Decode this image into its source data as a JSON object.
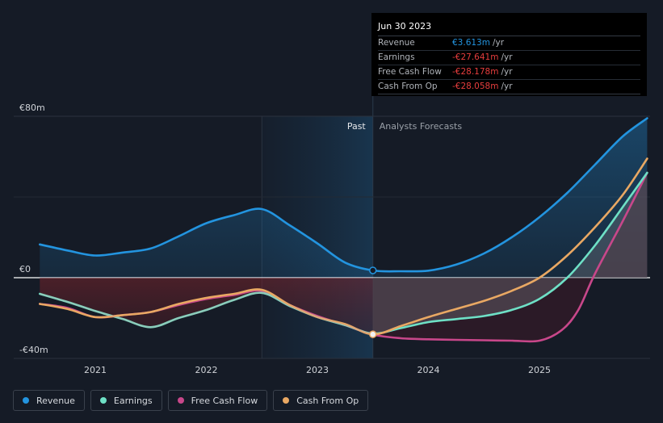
{
  "tooltip": {
    "date": "Jun 30 2023",
    "rows": [
      {
        "label": "Revenue",
        "value": "€3.613m",
        "unit": "/yr",
        "color": "#2394df"
      },
      {
        "label": "Earnings",
        "value": "-€27.641m",
        "unit": "/yr",
        "color": "#e63d3d"
      },
      {
        "label": "Free Cash Flow",
        "value": "-€28.178m",
        "unit": "/yr",
        "color": "#e63d3d"
      },
      {
        "label": "Cash From Op",
        "value": "-€28.058m",
        "unit": "/yr",
        "color": "#e63d3d"
      }
    ]
  },
  "legend": [
    {
      "label": "Revenue",
      "color": "#2394df"
    },
    {
      "label": "Earnings",
      "color": "#6ee0c6"
    },
    {
      "label": "Free Cash Flow",
      "color": "#c8478a"
    },
    {
      "label": "Cash From Op",
      "color": "#e9a863"
    }
  ],
  "chart_data": {
    "type": "line",
    "title": "",
    "xlabel": "",
    "ylabel": "",
    "unit": "€m",
    "ylim": [
      -40,
      80
    ],
    "xlim": [
      2020.5,
      2025.97
    ],
    "yticks": [
      {
        "v": 80,
        "label": "€80m"
      },
      {
        "v": 0,
        "label": "€0"
      },
      {
        "v": -40,
        "label": "-€40m"
      }
    ],
    "xticks": [
      {
        "v": 2021,
        "label": "2021"
      },
      {
        "v": 2022,
        "label": "2022"
      },
      {
        "v": 2023,
        "label": "2023"
      },
      {
        "v": 2024,
        "label": "2024"
      },
      {
        "v": 2025,
        "label": "2025"
      }
    ],
    "past_label": "Past",
    "forecast_label": "Analysts Forecasts",
    "highlight_range": [
      2022.5,
      2023.5
    ],
    "present_x": 2023.5,
    "series": [
      {
        "name": "Revenue",
        "color": "#2394df",
        "fill": "area",
        "x": [
          2020.5,
          2020.75,
          2021.0,
          2021.25,
          2021.5,
          2021.75,
          2022.0,
          2022.25,
          2022.5,
          2022.75,
          2023.0,
          2023.25,
          2023.5,
          2023.75,
          2024.0,
          2024.25,
          2024.5,
          2024.75,
          2025.0,
          2025.25,
          2025.5,
          2025.75,
          2025.97
        ],
        "y": [
          16.5,
          13.5,
          11.0,
          12.5,
          14.5,
          20.5,
          27.0,
          31.0,
          34.0,
          26.0,
          17.0,
          7.5,
          3.613,
          3.2,
          3.5,
          6.5,
          12.0,
          20.0,
          30.0,
          42.0,
          56.0,
          70.0,
          79.0
        ]
      },
      {
        "name": "Earnings",
        "color": "#6ee0c6",
        "x": [
          2020.5,
          2020.75,
          2021.0,
          2021.25,
          2021.5,
          2021.75,
          2022.0,
          2022.25,
          2022.5,
          2022.75,
          2023.0,
          2023.25,
          2023.5,
          2023.75,
          2024.0,
          2024.25,
          2024.5,
          2024.75,
          2025.0,
          2025.25,
          2025.5,
          2025.75,
          2025.97
        ],
        "y": [
          -8.0,
          -12.0,
          -16.5,
          -20.5,
          -24.5,
          -20.0,
          -16.0,
          -11.0,
          -7.5,
          -14.0,
          -19.5,
          -23.5,
          -27.641,
          -25.0,
          -22.0,
          -20.5,
          -19.0,
          -16.0,
          -10.5,
          0.0,
          16.0,
          35.0,
          52.0
        ]
      },
      {
        "name": "Free Cash Flow",
        "color": "#c8478a",
        "x": [
          2020.5,
          2020.75,
          2021.0,
          2021.25,
          2021.5,
          2021.75,
          2022.0,
          2022.25,
          2022.5,
          2022.75,
          2023.0,
          2023.25,
          2023.5,
          2023.75,
          2024.0,
          2024.25,
          2024.5,
          2024.75,
          2025.0,
          2025.2,
          2025.35,
          2025.5,
          2025.75,
          2025.97
        ],
        "y": [
          -13.0,
          -15.0,
          -19.5,
          -18.5,
          -17.0,
          -13.5,
          -10.5,
          -8.5,
          -6.5,
          -13.5,
          -19.0,
          -23.5,
          -28.178,
          -30.0,
          -30.5,
          -30.8,
          -31.0,
          -31.2,
          -31.2,
          -26.0,
          -16.0,
          2.0,
          28.0,
          52.0
        ]
      },
      {
        "name": "Cash From Op",
        "color": "#e9a863",
        "x": [
          2020.5,
          2020.75,
          2021.0,
          2021.25,
          2021.5,
          2021.75,
          2022.0,
          2022.25,
          2022.5,
          2022.75,
          2023.0,
          2023.25,
          2023.5,
          2023.75,
          2024.0,
          2024.25,
          2024.5,
          2024.75,
          2025.0,
          2025.25,
          2025.5,
          2025.75,
          2025.97
        ],
        "y": [
          -13.0,
          -15.5,
          -19.5,
          -18.5,
          -17.0,
          -13.0,
          -10.0,
          -8.0,
          -6.0,
          -13.5,
          -19.5,
          -23.0,
          -28.058,
          -24.0,
          -19.5,
          -15.5,
          -11.5,
          -6.5,
          0.0,
          11.0,
          25.0,
          41.0,
          59.0
        ]
      }
    ]
  }
}
